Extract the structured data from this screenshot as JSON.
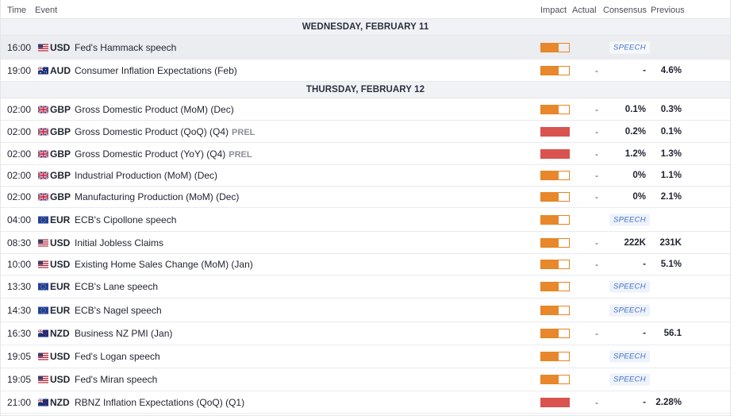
{
  "columns": {
    "time": "Time",
    "event": "Event",
    "impact": "Impact",
    "actual": "Actual",
    "consensus": "Consensus",
    "previous": "Previous"
  },
  "days": [
    {
      "label": "WEDNESDAY, FEBRUARY 11",
      "events": [
        {
          "time": "16:00",
          "flag": "us-flag-icon",
          "currency": "USD",
          "event": "Fed's Hammack speech",
          "prel": "",
          "impact": "medium",
          "actual": "",
          "consensus": "",
          "previous": "",
          "badge": "SPEECH",
          "highlighted": true
        },
        {
          "time": "19:00",
          "flag": "au-flag-icon",
          "currency": "AUD",
          "event": "Consumer Inflation Expectations (Feb)",
          "prel": "",
          "impact": "medium",
          "actual": "-",
          "consensus": "-",
          "previous": "4.6%",
          "badge": "",
          "highlighted": false
        }
      ]
    },
    {
      "label": "THURSDAY, FEBRUARY 12",
      "events": [
        {
          "time": "02:00",
          "flag": "uk-flag-icon",
          "currency": "GBP",
          "event": "Gross Domestic Product (MoM) (Dec)",
          "prel": "",
          "impact": "medium",
          "actual": "-",
          "consensus": "0.1%",
          "previous": "0.3%",
          "badge": "",
          "highlighted": false
        },
        {
          "time": "02:00",
          "flag": "uk-flag-icon",
          "currency": "GBP",
          "event": "Gross Domestic Product (QoQ) (Q4)",
          "prel": "PREL",
          "impact": "high",
          "actual": "-",
          "consensus": "0.2%",
          "previous": "0.1%",
          "badge": "",
          "highlighted": false
        },
        {
          "time": "02:00",
          "flag": "uk-flag-icon",
          "currency": "GBP",
          "event": "Gross Domestic Product (YoY) (Q4)",
          "prel": "PREL",
          "impact": "high",
          "actual": "-",
          "consensus": "1.2%",
          "previous": "1.3%",
          "badge": "",
          "highlighted": false
        },
        {
          "time": "02:00",
          "flag": "uk-flag-icon",
          "currency": "GBP",
          "event": "Industrial Production (MoM) (Dec)",
          "prel": "",
          "impact": "medium",
          "actual": "-",
          "consensus": "0%",
          "previous": "1.1%",
          "badge": "",
          "highlighted": false
        },
        {
          "time": "02:00",
          "flag": "uk-flag-icon",
          "currency": "GBP",
          "event": "Manufacturing Production (MoM) (Dec)",
          "prel": "",
          "impact": "medium",
          "actual": "-",
          "consensus": "0%",
          "previous": "2.1%",
          "badge": "",
          "highlighted": false
        },
        {
          "time": "04:00",
          "flag": "eu-flag-icon",
          "currency": "EUR",
          "event": "ECB's Cipollone speech",
          "prel": "",
          "impact": "medium",
          "actual": "",
          "consensus": "",
          "previous": "",
          "badge": "SPEECH",
          "highlighted": false
        },
        {
          "time": "08:30",
          "flag": "us-flag-icon",
          "currency": "USD",
          "event": "Initial Jobless Claims",
          "prel": "",
          "impact": "medium",
          "actual": "-",
          "consensus": "222K",
          "previous": "231K",
          "badge": "",
          "highlighted": false
        },
        {
          "time": "10:00",
          "flag": "us-flag-icon",
          "currency": "USD",
          "event": "Existing Home Sales Change (MoM) (Jan)",
          "prel": "",
          "impact": "medium",
          "actual": "-",
          "consensus": "-",
          "previous": "5.1%",
          "badge": "",
          "highlighted": false
        },
        {
          "time": "13:30",
          "flag": "eu-flag-icon",
          "currency": "EUR",
          "event": "ECB's Lane speech",
          "prel": "",
          "impact": "medium",
          "actual": "",
          "consensus": "",
          "previous": "",
          "badge": "SPEECH",
          "highlighted": false
        },
        {
          "time": "14:30",
          "flag": "eu-flag-icon",
          "currency": "EUR",
          "event": "ECB's Nagel speech",
          "prel": "",
          "impact": "medium",
          "actual": "",
          "consensus": "",
          "previous": "",
          "badge": "SPEECH",
          "highlighted": false
        },
        {
          "time": "16:30",
          "flag": "nz-flag-icon",
          "currency": "NZD",
          "event": "Business NZ PMI (Jan)",
          "prel": "",
          "impact": "medium",
          "actual": "-",
          "consensus": "-",
          "previous": "56.1",
          "badge": "",
          "highlighted": false
        },
        {
          "time": "19:05",
          "flag": "us-flag-icon",
          "currency": "USD",
          "event": "Fed's Logan speech",
          "prel": "",
          "impact": "medium",
          "actual": "",
          "consensus": "",
          "previous": "",
          "badge": "SPEECH",
          "highlighted": false
        },
        {
          "time": "19:05",
          "flag": "us-flag-icon",
          "currency": "USD",
          "event": "Fed's Miran speech",
          "prel": "",
          "impact": "medium",
          "actual": "",
          "consensus": "",
          "previous": "",
          "badge": "SPEECH",
          "highlighted": false
        },
        {
          "time": "21:00",
          "flag": "nz-flag-icon",
          "currency": "NZD",
          "event": "RBNZ Inflation Expectations (QoQ) (Q1)",
          "prel": "",
          "impact": "high",
          "actual": "-",
          "consensus": "-",
          "previous": "2.28%",
          "badge": "",
          "highlighted": false
        }
      ]
    }
  ],
  "colors": {
    "impact_medium": "#e8872b",
    "impact_high": "#d9534f",
    "speech_badge_text": "#4472c4"
  }
}
